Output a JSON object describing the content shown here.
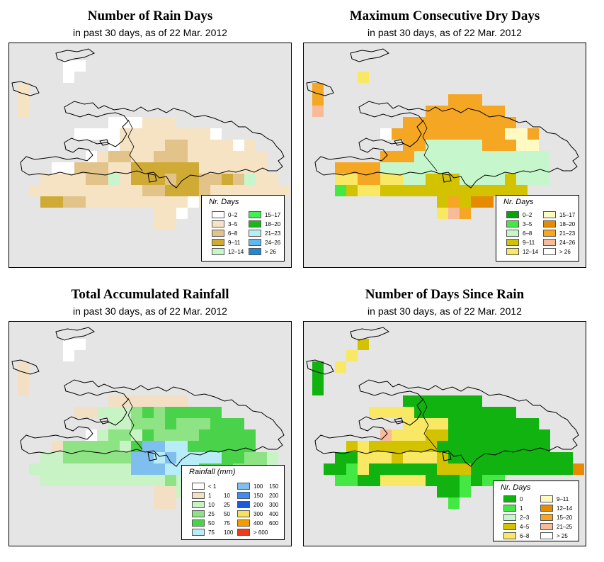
{
  "panels": [
    {
      "title": "Number of Rain Days",
      "subtitle": "in past 30 days, as of  22 Mar. 2012",
      "legend_title": "Nr. Days",
      "legend_items": [
        {
          "label": "0–2",
          "color": "#ffffff"
        },
        {
          "label": "3–5",
          "color": "#f5e3c4"
        },
        {
          "label": "6–8",
          "color": "#e2c48a"
        },
        {
          "label": "9–11",
          "color": "#cfab36"
        },
        {
          "label": "12–14",
          "color": "#c9f5cd"
        },
        {
          "label": "15–17",
          "color": "#44ee55"
        },
        {
          "label": "18–20",
          "color": "#18b818"
        },
        {
          "label": "21–23",
          "color": "#b8ecf8"
        },
        {
          "label": "24–26",
          "color": "#60b8f0"
        },
        {
          "label": "> 26",
          "color": "#1e8ad6"
        }
      ]
    },
    {
      "title": "Maximum Consecutive Dry Days",
      "subtitle": "in past 30 days, as of  22 Mar. 2012",
      "legend_title": "Nr. Days",
      "legend_items": [
        {
          "label": "0–2",
          "color": "#0aa10a"
        },
        {
          "label": "3–5",
          "color": "#44e844"
        },
        {
          "label": "6–8",
          "color": "#c6f7cc"
        },
        {
          "label": "9–11",
          "color": "#d2c200"
        },
        {
          "label": "12–14",
          "color": "#f8e864"
        },
        {
          "label": "15–17",
          "color": "#fff9c4"
        },
        {
          "label": "18–20",
          "color": "#e68a00"
        },
        {
          "label": "21–23",
          "color": "#f5a623"
        },
        {
          "label": "24–26",
          "color": "#f7bb9a"
        },
        {
          "label": "> 26",
          "color": "#ffffff"
        }
      ]
    },
    {
      "title": "Total Accumulated Rainfall",
      "subtitle": "in past 30 days, as of  22 Mar. 2012",
      "legend_title": "Rainfall (mm)",
      "legend_items": [
        {
          "min": "< 1",
          "max": "",
          "color": "#ffffff"
        },
        {
          "min": "1",
          "max": "10",
          "color": "#f3dfc3"
        },
        {
          "min": "10",
          "max": "25",
          "color": "#c8f3c4"
        },
        {
          "min": "25",
          "max": "50",
          "color": "#8ee484"
        },
        {
          "min": "50",
          "max": "75",
          "color": "#4ad24a"
        },
        {
          "min": "75",
          "max": "100",
          "color": "#b8ecf8"
        },
        {
          "min": "100",
          "max": "150",
          "color": "#7fbff0"
        },
        {
          "min": "150",
          "max": "200",
          "color": "#3d8ef0"
        },
        {
          "min": "200",
          "max": "300",
          "color": "#1f5ad6"
        },
        {
          "min": "300",
          "max": "400",
          "color": "#f8e060"
        },
        {
          "min": "400",
          "max": "600",
          "color": "#f59a00"
        },
        {
          "min": "> 600",
          "max": "",
          "color": "#ee3a1a"
        }
      ]
    },
    {
      "title": "Number of Days Since Rain",
      "subtitle": "in past 30 days, as of  22 Mar. 2012",
      "legend_title": "Nr. Days",
      "legend_items": [
        {
          "label": "0",
          "color": "#11b311"
        },
        {
          "label": "1",
          "color": "#44e844"
        },
        {
          "label": "2–3",
          "color": "#c6f7cc"
        },
        {
          "label": "4–5",
          "color": "#d2c200"
        },
        {
          "label": "6–8",
          "color": "#f8e864"
        },
        {
          "label": "9–11",
          "color": "#fff9c4"
        },
        {
          "label": "12–14",
          "color": "#e68a00"
        },
        {
          "label": "15–20",
          "color": "#f5a623"
        },
        {
          "label": "21–25",
          "color": "#f7bb9a"
        },
        {
          "label": "> 25",
          "color": "#ffffff"
        }
      ]
    }
  ]
}
